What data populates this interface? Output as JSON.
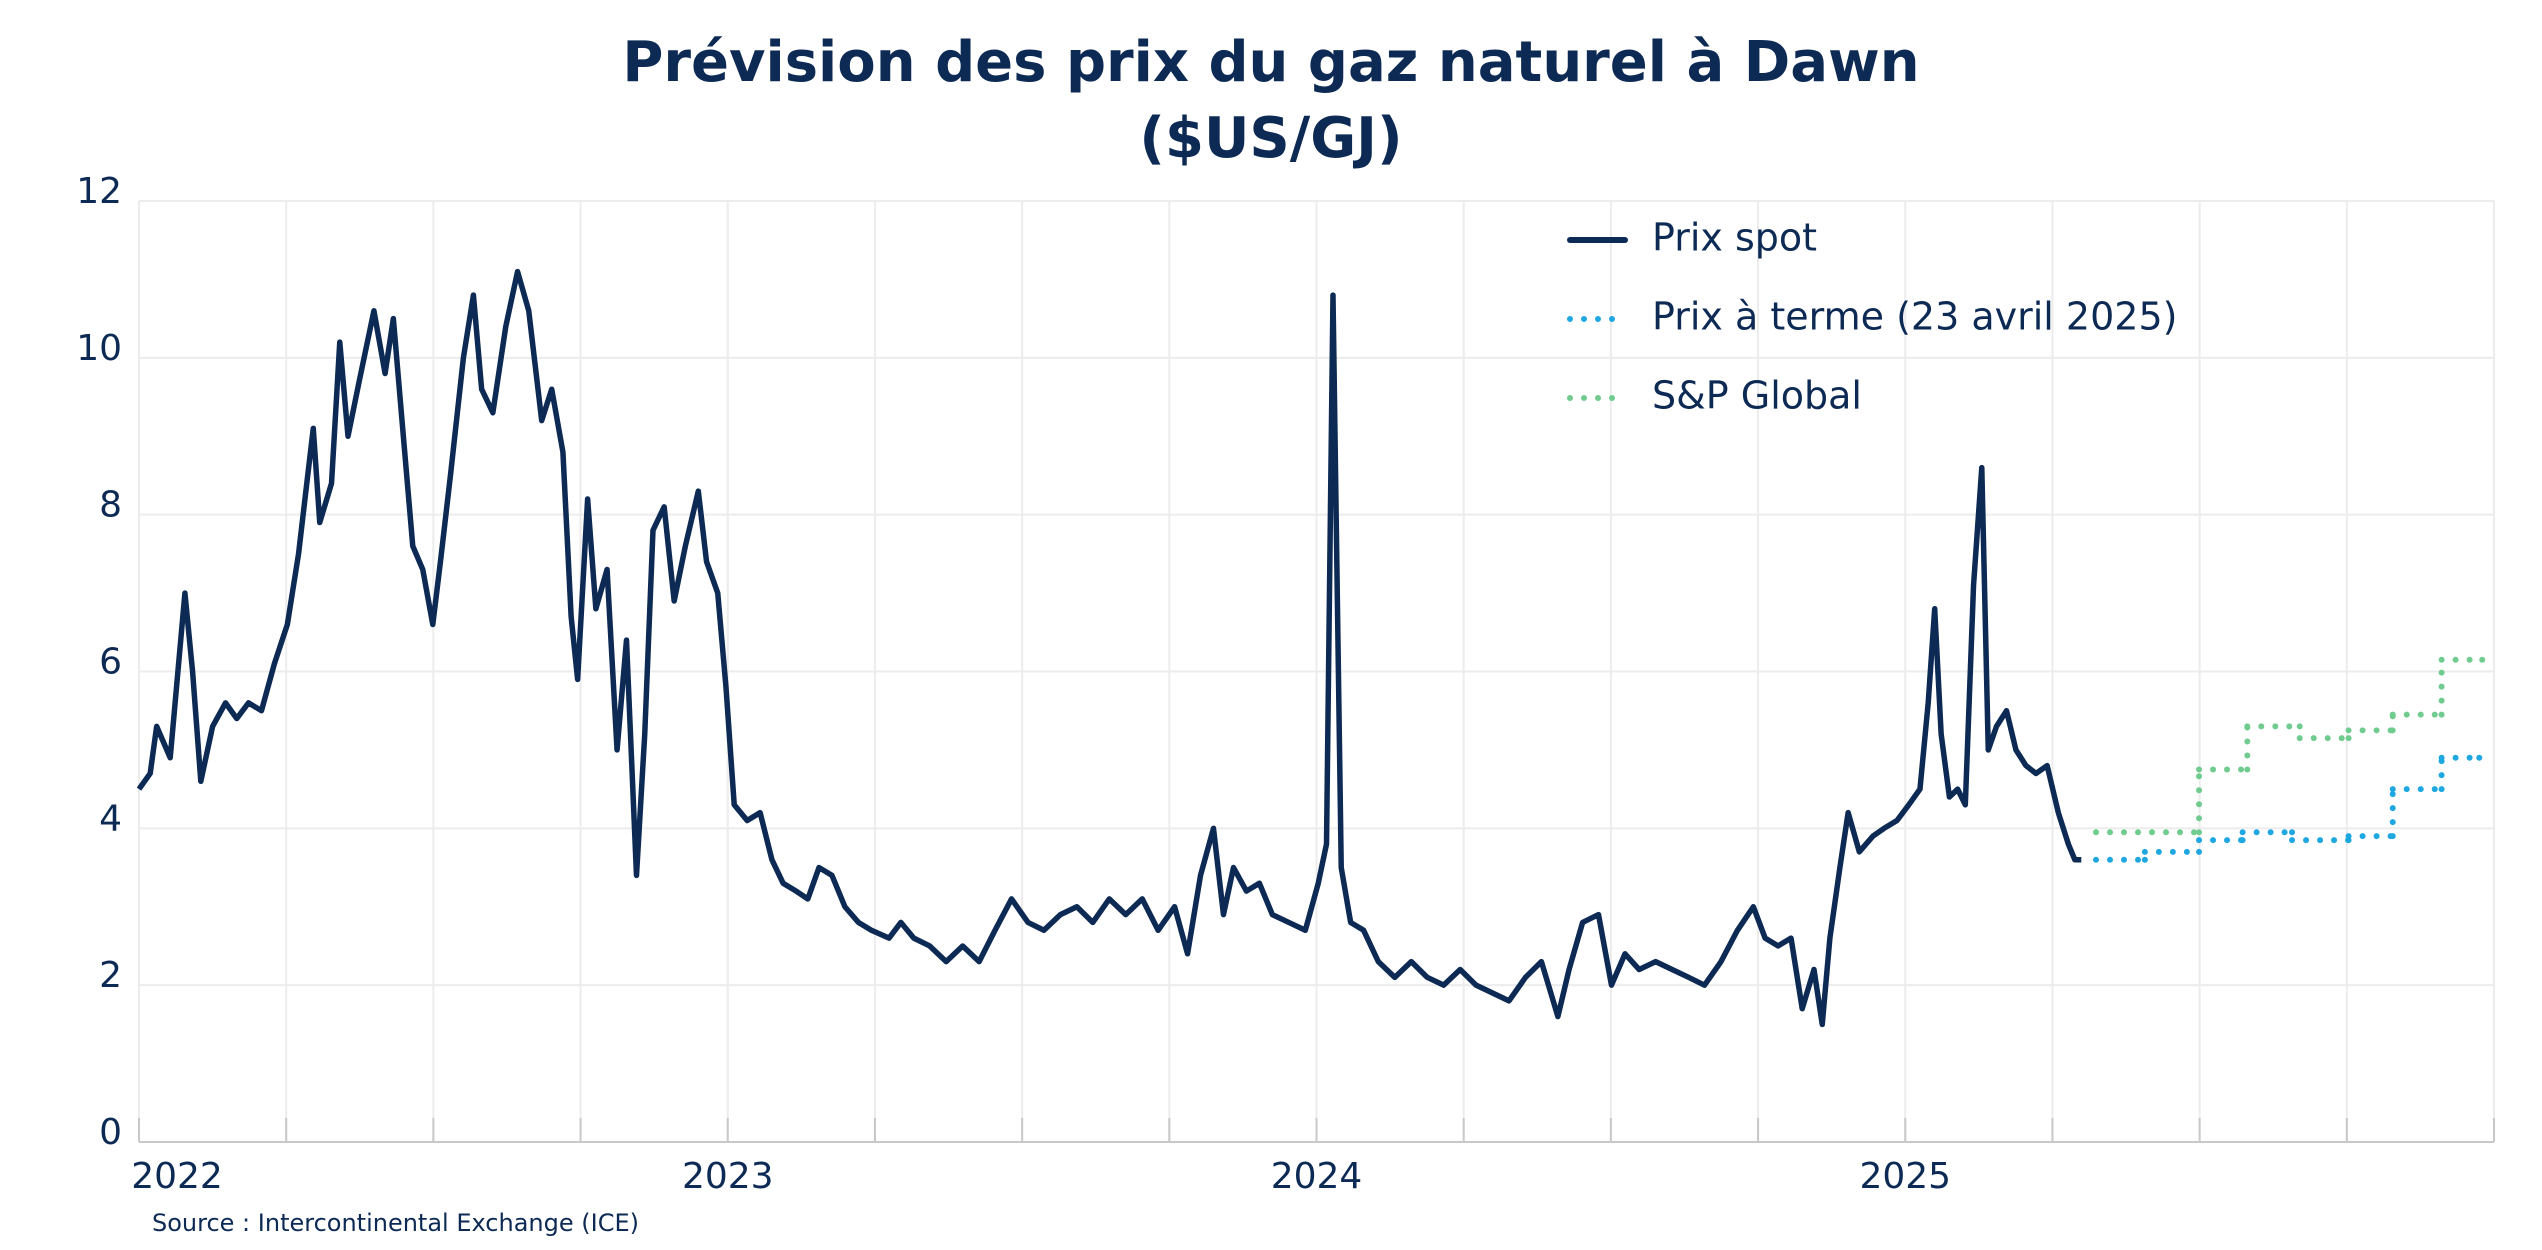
{
  "chart_data": {
    "type": "line",
    "title": [
      "Prévision des prix du gaz naturel à Dawn",
      "($US/GJ)"
    ],
    "source": "Source : Intercontinental Exchange (ICE)",
    "xlim": [
      2022,
      2026
    ],
    "xticks": [
      2022,
      2023,
      2024,
      2025
    ],
    "xgrid": [
      2022,
      2022.25,
      2022.5,
      2022.75,
      2023,
      2023.25,
      2023.5,
      2023.75,
      2024,
      2024.25,
      2024.5,
      2024.75,
      2025,
      2025.25,
      2025.5,
      2025.75,
      2026
    ],
    "ylim": [
      0,
      12
    ],
    "yticks": [
      0,
      2,
      4,
      6,
      8,
      10,
      12
    ],
    "grid": true,
    "legend": "top-right",
    "series": [
      {
        "name": "Prix spot",
        "color": "#0d2a55",
        "style": "solid",
        "x": [
          2022.0,
          2022.019,
          2022.03,
          2022.053,
          2022.078,
          2022.091,
          2022.105,
          2022.125,
          2022.147,
          2022.166,
          2022.186,
          2022.208,
          2022.23,
          2022.252,
          2022.271,
          2022.285,
          2022.296,
          2022.307,
          2022.327,
          2022.341,
          2022.355,
          2022.374,
          2022.399,
          2022.418,
          2022.432,
          2022.449,
          2022.465,
          2022.482,
          2022.499,
          2022.512,
          2022.529,
          2022.551,
          2022.568,
          2022.582,
          2022.601,
          2022.623,
          2022.643,
          2022.662,
          2022.684,
          2022.701,
          2022.72,
          2022.734,
          2022.745,
          2022.762,
          2022.776,
          2022.795,
          2022.812,
          2022.828,
          2022.845,
          2022.859,
          2022.873,
          2022.892,
          2022.909,
          2022.928,
          2022.95,
          2022.964,
          2022.983,
          2022.997,
          2023.011,
          2023.033,
          2023.055,
          2023.075,
          2023.094,
          2023.116,
          2023.136,
          2023.155,
          2023.177,
          2023.199,
          2023.222,
          2023.244,
          2023.274,
          2023.294,
          2023.316,
          2023.343,
          2023.371,
          2023.399,
          2023.427,
          2023.454,
          2023.482,
          2023.51,
          2023.537,
          2023.565,
          2023.593,
          2023.62,
          2023.648,
          2023.676,
          2023.704,
          2023.731,
          2023.759,
          2023.781,
          2023.803,
          2023.825,
          2023.842,
          2023.859,
          2023.881,
          2023.903,
          2023.925,
          2023.953,
          2023.981,
          2024.003,
          2024.017,
          2024.028,
          2024.042,
          2024.058,
          2024.08,
          2024.105,
          2024.133,
          2024.161,
          2024.188,
          2024.216,
          2024.244,
          2024.271,
          2024.299,
          2024.327,
          2024.355,
          2024.382,
          2024.41,
          2024.429,
          2024.452,
          2024.479,
          2024.501,
          2024.524,
          2024.548,
          2024.576,
          2024.604,
          2024.632,
          2024.659,
          2024.687,
          2024.715,
          2024.742,
          2024.762,
          2024.784,
          2024.806,
          2024.825,
          2024.845,
          2024.859,
          2024.872,
          2024.889,
          2024.903,
          2024.922,
          2024.945,
          2024.964,
          2024.986,
          2025.006,
          2025.025,
          2025.039,
          2025.05,
          2025.061,
          2025.075,
          2025.089,
          2025.102,
          2025.116,
          2025.13,
          2025.141,
          2025.155,
          2025.172,
          2025.188,
          2025.205,
          2025.222,
          2025.241,
          2025.26,
          2025.277,
          2025.288,
          2025.299
        ],
        "values": [
          4.5,
          4.7,
          5.3,
          4.9,
          7.0,
          6.0,
          4.6,
          5.3,
          5.6,
          5.4,
          5.6,
          5.5,
          6.1,
          6.6,
          7.5,
          8.4,
          9.1,
          7.9,
          8.4,
          10.2,
          9.0,
          9.7,
          10.6,
          9.8,
          10.5,
          9.0,
          7.6,
          7.3,
          6.6,
          7.4,
          8.5,
          10.0,
          10.8,
          9.6,
          9.3,
          10.4,
          11.1,
          10.6,
          9.2,
          9.6,
          8.8,
          6.7,
          5.9,
          8.2,
          6.8,
          7.3,
          5.0,
          6.4,
          3.4,
          5.2,
          7.8,
          8.1,
          6.9,
          7.6,
          8.3,
          7.4,
          7.0,
          5.8,
          4.3,
          4.1,
          4.2,
          3.6,
          3.3,
          3.2,
          3.1,
          3.5,
          3.4,
          3.0,
          2.8,
          2.7,
          2.6,
          2.8,
          2.6,
          2.5,
          2.3,
          2.5,
          2.3,
          2.7,
          3.1,
          2.8,
          2.7,
          2.9,
          3.0,
          2.8,
          3.1,
          2.9,
          3.1,
          2.7,
          3.0,
          2.4,
          3.4,
          4.0,
          2.9,
          3.5,
          3.2,
          3.3,
          2.9,
          2.8,
          2.7,
          3.3,
          3.8,
          10.8,
          3.5,
          2.8,
          2.7,
          2.3,
          2.1,
          2.3,
          2.1,
          2.0,
          2.2,
          2.0,
          1.9,
          1.8,
          2.1,
          2.3,
          1.6,
          2.2,
          2.8,
          2.9,
          2.0,
          2.4,
          2.2,
          2.3,
          2.2,
          2.1,
          2.0,
          2.3,
          2.7,
          3.0,
          2.6,
          2.5,
          2.6,
          1.7,
          2.2,
          1.5,
          2.6,
          3.5,
          4.2,
          3.7,
          3.9,
          4.0,
          4.1,
          4.3,
          4.5,
          5.6,
          6.8,
          5.2,
          4.4,
          4.5,
          4.3,
          7.1,
          8.6,
          5.0,
          5.3,
          5.5,
          5.0,
          4.8,
          4.7,
          4.8,
          4.2,
          3.8,
          3.6,
          3.6
        ]
      },
      {
        "name": "Prix à terme (23 avril 2025)",
        "color": "#1ea7e1",
        "style": "dotted-step",
        "x": [
          2025.324,
          2025.407,
          2025.499,
          2025.573,
          2025.657,
          2025.753,
          2025.828,
          2025.911,
          2025.975
        ],
        "values": [
          3.6,
          3.7,
          3.85,
          3.95,
          3.85,
          3.9,
          4.5,
          4.9,
          4.9
        ]
      },
      {
        "name": "S&P Global",
        "color": "#6fcb8e",
        "style": "dotted-step",
        "x": [
          2025.324,
          2025.499,
          2025.581,
          2025.67,
          2025.753,
          2025.828,
          2025.911,
          2025.98
        ],
        "values": [
          3.95,
          4.75,
          5.3,
          5.15,
          5.25,
          5.45,
          6.15,
          6.15
        ]
      }
    ]
  }
}
